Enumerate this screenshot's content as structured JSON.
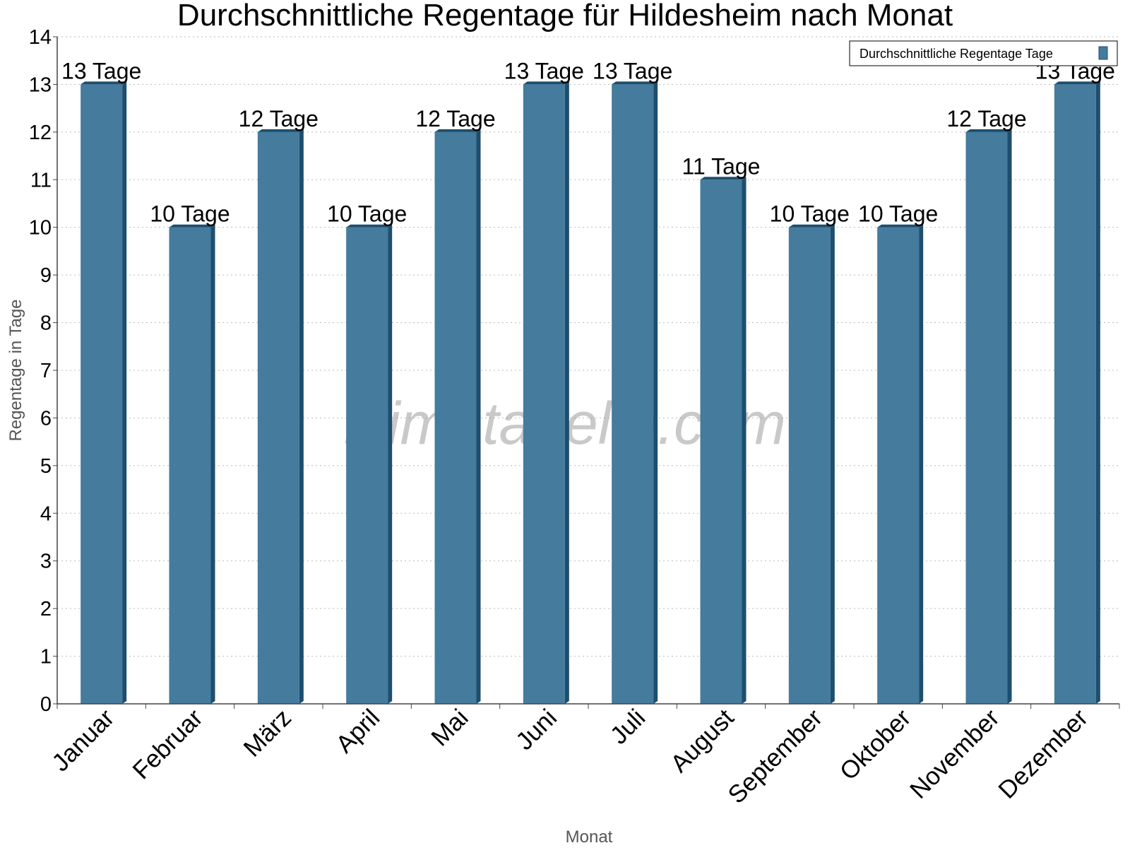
{
  "chart_data": {
    "type": "bar",
    "title": "Durchschnittliche Regentage für Hildesheim nach Monat",
    "xlabel": "Monat",
    "ylabel": "Regentage in Tage",
    "ylim": [
      0,
      14
    ],
    "yticks": [
      0,
      1,
      2,
      3,
      4,
      5,
      6,
      7,
      8,
      9,
      10,
      11,
      12,
      13,
      14
    ],
    "grid": true,
    "legend_position": "top-right",
    "categories": [
      "Januar",
      "Februar",
      "März",
      "April",
      "Mai",
      "Juni",
      "Juli",
      "August",
      "September",
      "Oktober",
      "November",
      "Dezember"
    ],
    "series": [
      {
        "name": "Durchschnittliche Regentage Tage",
        "values": [
          13,
          10,
          12,
          10,
          12,
          13,
          13,
          11,
          10,
          10,
          12,
          13
        ],
        "labels": [
          "13 Tage",
          "10 Tage",
          "12 Tage",
          "10 Tage",
          "12 Tage",
          "13 Tage",
          "13 Tage",
          "11 Tage",
          "10 Tage",
          "10 Tage",
          "12 Tage",
          "13 Tage"
        ],
        "color": "#457b9d",
        "shade_color": "#1d4e6e"
      }
    ],
    "watermark": "klimatabelle.com"
  }
}
